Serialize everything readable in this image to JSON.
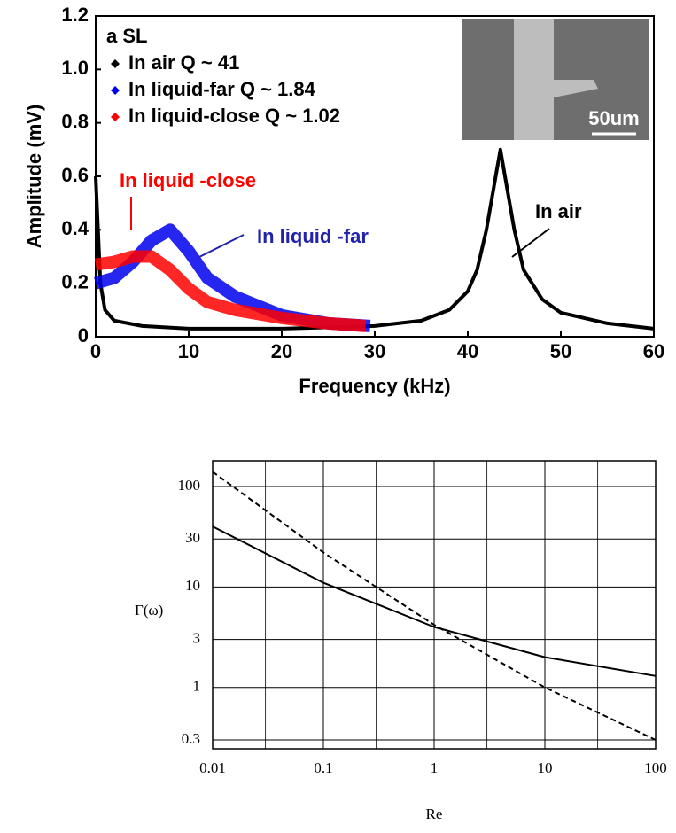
{
  "chart_data": [
    {
      "type": "line",
      "x_label": "Frequency (kHz)",
      "y_label": "Amplitude (mV)",
      "annotations": [
        "a  SL",
        "In liquid -close",
        "In liquid -far",
        "In air",
        "50um"
      ],
      "xlim": [
        0,
        60
      ],
      "ylim": [
        0,
        1.2
      ],
      "xticks": [
        0,
        10,
        20,
        30,
        40,
        50,
        60
      ],
      "yticks": [
        0,
        0.2,
        0.4,
        0.6,
        0.8,
        {
          "value": 1,
          "label": "1.0"
        },
        1.2
      ],
      "series": [
        {
          "name": "In air Q ~ 41",
          "color": "#000000",
          "x": [
            0,
            0.5,
            1,
            2,
            5,
            10,
            20,
            30,
            35,
            38,
            40,
            41,
            42,
            43,
            43.5,
            44,
            45,
            46,
            48,
            50,
            55,
            60
          ],
          "values": [
            0.6,
            0.2,
            0.1,
            0.06,
            0.04,
            0.03,
            0.03,
            0.04,
            0.06,
            0.1,
            0.17,
            0.25,
            0.4,
            0.6,
            0.7,
            0.6,
            0.4,
            0.25,
            0.14,
            0.09,
            0.05,
            0.03
          ]
        },
        {
          "name": "In liquid-far Q ~ 1.84",
          "color": "#0000ee",
          "x": [
            0,
            2,
            4,
            6,
            8,
            10,
            12,
            15,
            20,
            25,
            29.5
          ],
          "values": [
            0.2,
            0.22,
            0.28,
            0.36,
            0.4,
            0.32,
            0.22,
            0.15,
            0.08,
            0.05,
            0.04
          ]
        },
        {
          "name": "In liquid-close Q ~ 1.02",
          "color": "#ff0000",
          "x": [
            0,
            2,
            4,
            6,
            8,
            10,
            12,
            15,
            20,
            25,
            29
          ],
          "values": [
            0.27,
            0.28,
            0.3,
            0.3,
            0.25,
            0.18,
            0.13,
            0.1,
            0.07,
            0.05,
            0.04
          ]
        }
      ]
    },
    {
      "type": "line",
      "x_label": "Re",
      "y_label": "Γ(ω)",
      "log_x": true,
      "log_y": true,
      "grid": true,
      "xlim": [
        0.01,
        100
      ],
      "ylim": [
        0.245,
        180
      ],
      "xticks": [
        0.01,
        0.1,
        1,
        10,
        100
      ],
      "yticks": [
        0.3,
        1,
        3,
        10,
        30,
        100
      ],
      "series": [
        {
          "color": "#000000",
          "dash": false,
          "x": [
            0.01,
            0.1,
            1,
            10,
            100
          ],
          "values": [
            40,
            11,
            4,
            2,
            1.3
          ]
        },
        {
          "color": "#000000",
          "dash": true,
          "x": [
            0.01,
            0.1,
            1,
            10,
            100
          ],
          "values": [
            140,
            22,
            4.2,
            1,
            0.3
          ]
        }
      ]
    }
  ]
}
